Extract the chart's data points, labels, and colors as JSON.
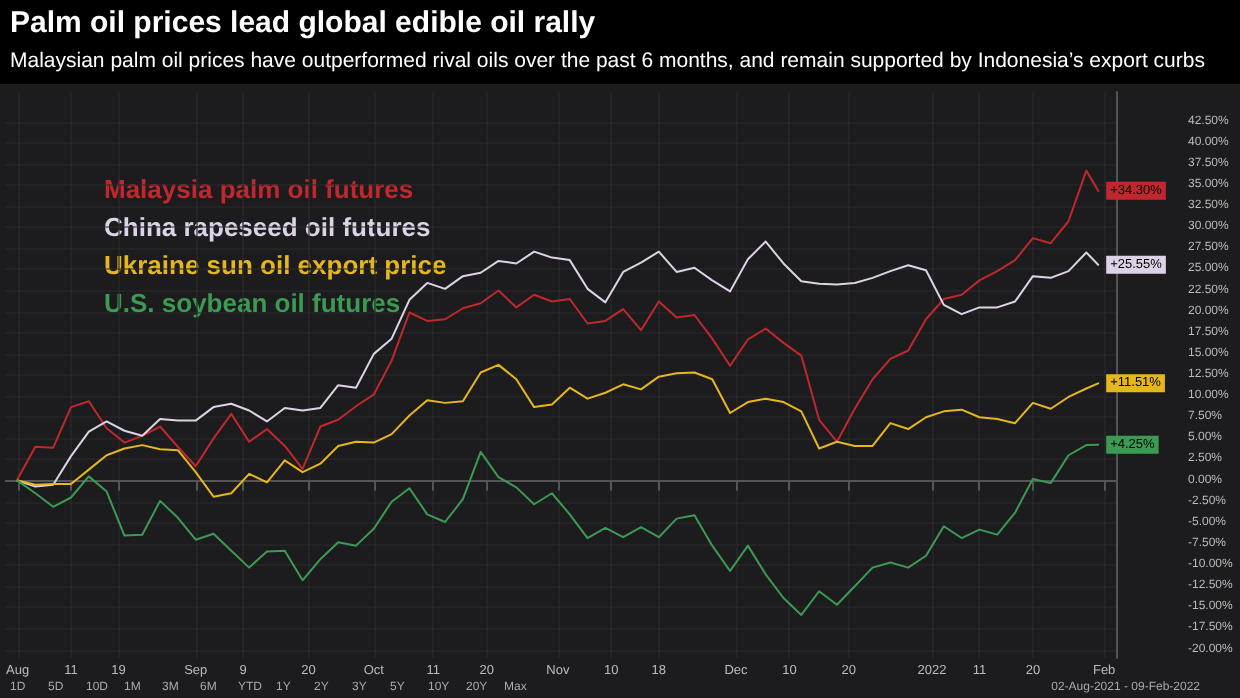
{
  "chart_data": {
    "type": "line",
    "title": "Palm oil prices lead global edible oil rally",
    "subtitle": "Malaysian palm oil prices have outperformed rival oils over the past 6 months, and remain supported by Indonesia’s export curbs",
    "x": [
      "2021-08-02",
      "2021-08-05",
      "2021-08-08",
      "2021-08-11",
      "2021-08-14",
      "2021-08-17",
      "2021-08-20",
      "2021-08-23",
      "2021-08-26",
      "2021-08-29",
      "2021-09-01",
      "2021-09-04",
      "2021-09-07",
      "2021-09-10",
      "2021-09-13",
      "2021-09-16",
      "2021-09-19",
      "2021-09-22",
      "2021-09-25",
      "2021-09-28",
      "2021-10-01",
      "2021-10-04",
      "2021-10-07",
      "2021-10-10",
      "2021-10-13",
      "2021-10-16",
      "2021-10-19",
      "2021-10-22",
      "2021-10-25",
      "2021-10-28",
      "2021-10-31",
      "2021-11-03",
      "2021-11-06",
      "2021-11-09",
      "2021-11-12",
      "2021-11-15",
      "2021-11-18",
      "2021-11-21",
      "2021-11-24",
      "2021-11-27",
      "2021-11-30",
      "2021-12-03",
      "2021-12-06",
      "2021-12-09",
      "2021-12-12",
      "2021-12-15",
      "2021-12-18",
      "2021-12-21",
      "2021-12-24",
      "2021-12-27",
      "2021-12-30",
      "2022-01-02",
      "2022-01-05",
      "2022-01-08",
      "2022-01-11",
      "2022-01-14",
      "2022-01-17",
      "2022-01-20",
      "2022-01-23",
      "2022-01-26",
      "2022-01-29",
      "2022-01-31"
    ],
    "series": [
      {
        "name": "Malaysia palm oil futures",
        "color": "#c0282d",
        "values": [
          0.2,
          4.0,
          3.9,
          8.7,
          9.4,
          6.2,
          4.5,
          5.3,
          6.4,
          4.0,
          1.7,
          5.0,
          7.9,
          4.6,
          6.1,
          4.1,
          1.4,
          6.4,
          7.2,
          8.8,
          10.2,
          14.2,
          19.9,
          18.9,
          19.1,
          20.4,
          21.0,
          22.5,
          20.5,
          22.0,
          21.2,
          21.5,
          18.6,
          18.9,
          20.3,
          17.8,
          21.2,
          19.3,
          19.6,
          16.8,
          13.6,
          16.7,
          18.0,
          16.3,
          14.8,
          7.2,
          4.6,
          8.5,
          12.0,
          14.4,
          15.4,
          19.1,
          21.5,
          22.0,
          23.7,
          24.8,
          26.1,
          28.7,
          28.1,
          30.7,
          36.7,
          34.3
        ],
        "value_labels": [
          null,
          null,
          null,
          null,
          null,
          null,
          null,
          null,
          null,
          null,
          null,
          null,
          null,
          null,
          null,
          null,
          null,
          null,
          null,
          null,
          null,
          null,
          null,
          null,
          null,
          null,
          null,
          null,
          null,
          null,
          null,
          null,
          null,
          null,
          null,
          null,
          null,
          null,
          null,
          null,
          null,
          null,
          null,
          null,
          null,
          null,
          null,
          null,
          null,
          null,
          null,
          null,
          null,
          null,
          null,
          null,
          null,
          null,
          null,
          null,
          null,
          "+34.30%"
        ]
      },
      {
        "name": "China rapeseed oil futures",
        "color": "#ddd2e6",
        "values": [
          0,
          -0.7,
          -0.5,
          2.9,
          5.8,
          7.0,
          5.9,
          5.3,
          7.3,
          7.1,
          7.1,
          8.7,
          9.1,
          8.3,
          7.0,
          8.6,
          8.3,
          8.6,
          11.3,
          11.0,
          15.0,
          16.8,
          21.4,
          23.4,
          22.7,
          24.2,
          24.6,
          26.0,
          25.7,
          27.1,
          26.4,
          26.1,
          22.7,
          21.1,
          24.7,
          25.8,
          27.1,
          24.7,
          25.2,
          23.7,
          22.4,
          26.2,
          28.3,
          25.7,
          23.6,
          23.3,
          23.2,
          23.4,
          24.0,
          24.8,
          25.5,
          24.9,
          20.8,
          19.7,
          20.5,
          20.5,
          21.2,
          24.2,
          24.0,
          24.8,
          27.0,
          25.55
        ],
        "value_labels": [
          null,
          null,
          null,
          null,
          null,
          null,
          null,
          null,
          null,
          null,
          null,
          null,
          null,
          null,
          null,
          null,
          null,
          null,
          null,
          null,
          null,
          null,
          null,
          null,
          null,
          null,
          null,
          null,
          null,
          null,
          null,
          null,
          null,
          null,
          null,
          null,
          null,
          null,
          null,
          null,
          null,
          null,
          null,
          null,
          null,
          null,
          null,
          null,
          null,
          null,
          null,
          null,
          null,
          null,
          null,
          null,
          null,
          null,
          null,
          null,
          null,
          "+25.55%"
        ]
      },
      {
        "name": "Ukraine sun oil export price",
        "color": "#e6b61e",
        "values": [
          0,
          -0.5,
          -0.4,
          -0.4,
          1.3,
          3.0,
          3.8,
          4.2,
          3.7,
          3.6,
          1.0,
          -1.9,
          -1.5,
          0.8,
          -0.2,
          2.4,
          1.0,
          2.0,
          4.1,
          4.6,
          4.5,
          5.5,
          7.7,
          9.5,
          9.2,
          9.4,
          12.8,
          13.7,
          12.0,
          8.7,
          9.0,
          11.0,
          9.7,
          10.4,
          11.4,
          10.8,
          12.3,
          12.7,
          12.8,
          12.0,
          8.0,
          9.3,
          9.7,
          9.3,
          8.2,
          3.8,
          4.6,
          4.1,
          4.1,
          6.8,
          6.1,
          7.5,
          8.2,
          8.4,
          7.5,
          7.3,
          6.8,
          9.2,
          8.5,
          9.9,
          10.9,
          11.51
        ],
        "value_labels": [
          null,
          null,
          null,
          null,
          null,
          null,
          null,
          null,
          null,
          null,
          null,
          null,
          null,
          null,
          null,
          null,
          null,
          null,
          null,
          null,
          null,
          null,
          null,
          null,
          null,
          null,
          null,
          null,
          null,
          null,
          null,
          null,
          null,
          null,
          null,
          null,
          null,
          null,
          null,
          null,
          null,
          null,
          null,
          null,
          null,
          null,
          null,
          null,
          null,
          null,
          null,
          null,
          null,
          null,
          null,
          null,
          null,
          null,
          null,
          null,
          null,
          "+11.51%"
        ]
      },
      {
        "name": "U.S. soybean oil futures",
        "color": "#3c9a52",
        "values": [
          0,
          -1.5,
          -3.1,
          -2.0,
          0.5,
          -1.3,
          -6.5,
          -6.4,
          -2.4,
          -4.4,
          -7.0,
          -6.3,
          -8.3,
          -10.3,
          -8.4,
          -8.3,
          -11.8,
          -9.3,
          -7.3,
          -7.7,
          -5.7,
          -2.5,
          -0.9,
          -4.0,
          -4.9,
          -2.2,
          3.4,
          0.4,
          -0.8,
          -2.8,
          -1.5,
          -4.0,
          -6.8,
          -5.6,
          -6.7,
          -5.5,
          -6.7,
          -4.5,
          -4.1,
          -7.7,
          -10.7,
          -7.7,
          -11.1,
          -13.9,
          -15.9,
          -13.1,
          -14.7,
          -12.5,
          -10.3,
          -9.7,
          -10.3,
          -8.9,
          -5.4,
          -6.8,
          -5.8,
          -6.4,
          -3.8,
          0.2,
          -0.3,
          3.0,
          4.2,
          4.25
        ],
        "value_labels": [
          null,
          null,
          null,
          null,
          null,
          null,
          null,
          null,
          null,
          null,
          null,
          null,
          null,
          null,
          null,
          null,
          null,
          null,
          null,
          null,
          null,
          null,
          null,
          null,
          null,
          null,
          null,
          null,
          null,
          null,
          null,
          null,
          null,
          null,
          null,
          null,
          null,
          null,
          null,
          null,
          null,
          null,
          null,
          null,
          null,
          null,
          null,
          null,
          null,
          null,
          null,
          null,
          null,
          null,
          null,
          null,
          null,
          null,
          null,
          null,
          null,
          "+4.25%"
        ]
      }
    ],
    "xlim": [
      "2021-07-31",
      "2022-02-03"
    ],
    "xticks": [
      {
        "value": "2021-08-02",
        "label": "Aug"
      },
      {
        "value": "2021-08-11",
        "label": "11"
      },
      {
        "value": "2021-08-19",
        "label": "19"
      },
      {
        "value": "2021-09-01",
        "label": "Sep"
      },
      {
        "value": "2021-09-09",
        "label": "9"
      },
      {
        "value": "2021-09-20",
        "label": "20"
      },
      {
        "value": "2021-10-01",
        "label": "Oct"
      },
      {
        "value": "2021-10-11",
        "label": "11"
      },
      {
        "value": "2021-10-20",
        "label": "20"
      },
      {
        "value": "2021-11-01",
        "label": "Nov"
      },
      {
        "value": "2021-11-10",
        "label": "10"
      },
      {
        "value": "2021-11-18",
        "label": "18"
      },
      {
        "value": "2021-12-01",
        "label": "Dec"
      },
      {
        "value": "2021-12-10",
        "label": "10"
      },
      {
        "value": "2021-12-20",
        "label": "20"
      },
      {
        "value": "2022-01-03",
        "label": "2022"
      },
      {
        "value": "2022-01-11",
        "label": "11"
      },
      {
        "value": "2022-01-20",
        "label": "20"
      },
      {
        "value": "2022-02-01",
        "label": "Feb"
      }
    ],
    "ylim": [
      -21,
      46
    ],
    "yticks": [
      {
        "value": -20,
        "label": "-20.00%"
      },
      {
        "value": -17.5,
        "label": "-17.50%"
      },
      {
        "value": -15,
        "label": "-15.00%"
      },
      {
        "value": -12.5,
        "label": "-12.50%"
      },
      {
        "value": -10,
        "label": "-10.00%"
      },
      {
        "value": -7.5,
        "label": "-7.50%"
      },
      {
        "value": -5,
        "label": "-5.00%"
      },
      {
        "value": -2.5,
        "label": "-2.50%"
      },
      {
        "value": 0,
        "label": "0.00%"
      },
      {
        "value": 2.5,
        "label": "2.50%"
      },
      {
        "value": 5,
        "label": "5.00%"
      },
      {
        "value": 7.5,
        "label": "7.50%"
      },
      {
        "value": 10,
        "label": "10.00%"
      },
      {
        "value": 12.5,
        "label": "12.50%"
      },
      {
        "value": 15,
        "label": "15.00%"
      },
      {
        "value": 17.5,
        "label": "17.50%"
      },
      {
        "value": 20,
        "label": "20.00%"
      },
      {
        "value": 22.5,
        "label": "22.50%"
      },
      {
        "value": 25,
        "label": "25.00%"
      },
      {
        "value": 27.5,
        "label": "27.50%"
      },
      {
        "value": 30,
        "label": "30.00%"
      },
      {
        "value": 32.5,
        "label": "32.50%"
      },
      {
        "value": 35,
        "label": "35.00%"
      },
      {
        "value": 37.5,
        "label": "37.50%"
      },
      {
        "value": 40,
        "label": "40.00%"
      },
      {
        "value": 42.5,
        "label": "42.50%"
      }
    ],
    "grid": true,
    "legend": "top left",
    "annotations": [
      "1D",
      "5D",
      "10D",
      "1M",
      "3M",
      "6M",
      "YTD",
      "1Y",
      "2Y",
      "3Y",
      "5Y",
      "10Y",
      "20Y",
      "Max",
      "02-Aug-2021 - 09-Feb-2022"
    ]
  }
}
